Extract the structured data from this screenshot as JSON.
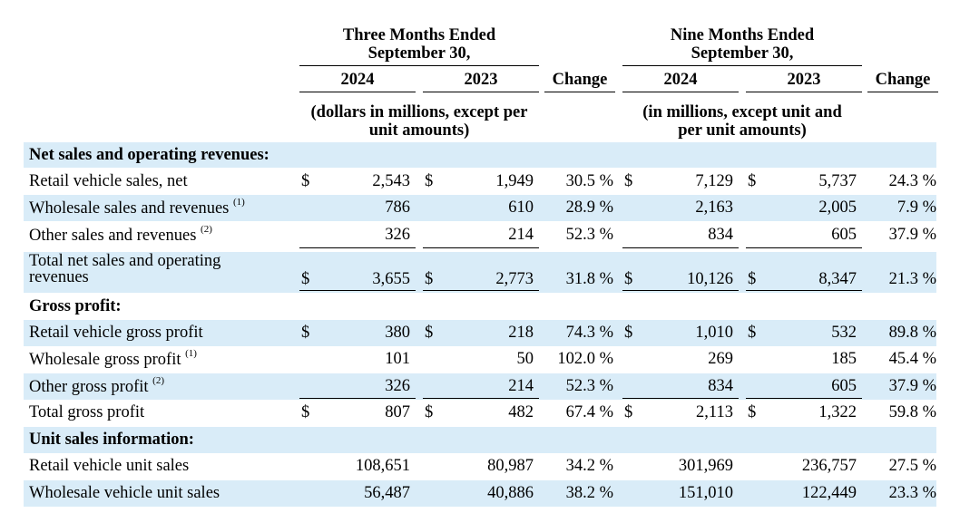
{
  "header": {
    "three_months": [
      "Three Months Ended",
      "September 30,"
    ],
    "nine_months": [
      "Nine Months Ended",
      "September 30,"
    ],
    "year_2024": "2024",
    "year_2023": "2023",
    "change": "Change",
    "units_left": [
      "(dollars in millions, except per",
      "unit amounts)"
    ],
    "units_right": [
      "(in millions, except unit and",
      "per unit amounts)"
    ]
  },
  "sections": {
    "net_sales": "Net sales and operating revenues:",
    "gross_profit": "Gross profit:",
    "unit_sales": "Unit sales information:"
  },
  "rows": [
    {
      "label": "Retail vehicle sales, net",
      "note": "",
      "d1": "$",
      "q24": "2,543",
      "d2": "$",
      "q23": "1,949",
      "chg": "30.5 %",
      "d3": "$",
      "n24": "7,129",
      "d4": "$",
      "n23": "5,737",
      "nchg": "24.3 %"
    },
    {
      "label": "Wholesale sales and revenues",
      "note": "(1)",
      "d1": "",
      "q24": "786",
      "d2": "",
      "q23": "610",
      "chg": "28.9 %",
      "d3": "",
      "n24": "2,163",
      "d4": "",
      "n23": "2,005",
      "nchg": "7.9 %"
    },
    {
      "label": "Other sales and revenues",
      "note": "(2)",
      "d1": "",
      "q24": "326",
      "d2": "",
      "q23": "214",
      "chg": "52.3 %",
      "d3": "",
      "n24": "834",
      "d4": "",
      "n23": "605",
      "nchg": "37.9 %"
    },
    {
      "label": "Total net sales and operating",
      "label2": "revenues",
      "note": "",
      "d1": "$",
      "q24": "3,655",
      "d2": "$",
      "q23": "2,773",
      "chg": "31.8 %",
      "d3": "$",
      "n24": "10,126",
      "d4": "$",
      "n23": "8,347",
      "nchg": "21.3 %"
    },
    {
      "label": "Retail vehicle gross profit",
      "note": "",
      "d1": "$",
      "q24": "380",
      "d2": "$",
      "q23": "218",
      "chg": "74.3 %",
      "d3": "$",
      "n24": "1,010",
      "d4": "$",
      "n23": "532",
      "nchg": "89.8 %"
    },
    {
      "label": "Wholesale gross profit",
      "note": "(1)",
      "d1": "",
      "q24": "101",
      "d2": "",
      "q23": "50",
      "chg": "102.0 %",
      "d3": "",
      "n24": "269",
      "d4": "",
      "n23": "185",
      "nchg": "45.4 %"
    },
    {
      "label": "Other gross profit",
      "note": "(2)",
      "d1": "",
      "q24": "326",
      "d2": "",
      "q23": "214",
      "chg": "52.3 %",
      "d3": "",
      "n24": "834",
      "d4": "",
      "n23": "605",
      "nchg": "37.9 %"
    },
    {
      "label": "Total gross profit",
      "note": "",
      "d1": "$",
      "q24": "807",
      "d2": "$",
      "q23": "482",
      "chg": "67.4 %",
      "d3": "$",
      "n24": "2,113",
      "d4": "$",
      "n23": "1,322",
      "nchg": "59.8 %"
    },
    {
      "label": "Retail vehicle unit sales",
      "note": "",
      "d1": "",
      "q24": "108,651",
      "d2": "",
      "q23": "80,987",
      "chg": "34.2 %",
      "d3": "",
      "n24": "301,969",
      "d4": "",
      "n23": "236,757",
      "nchg": "27.5 %"
    },
    {
      "label": "Wholesale vehicle unit sales",
      "note": "",
      "d1": "",
      "q24": "56,487",
      "d2": "",
      "q23": "40,886",
      "chg": "38.2 %",
      "d3": "",
      "n24": "151,010",
      "d4": "",
      "n23": "122,449",
      "nchg": "23.3 %"
    }
  ]
}
